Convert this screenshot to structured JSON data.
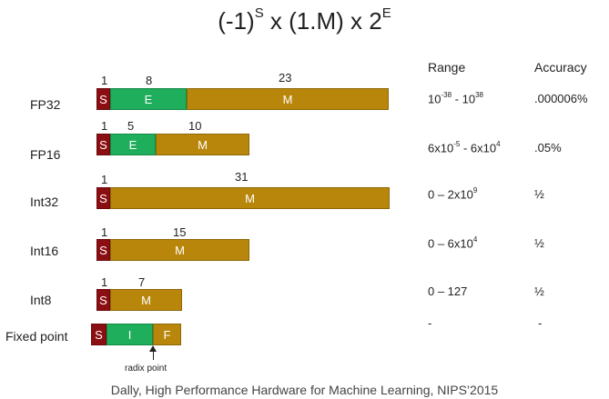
{
  "formula": {
    "base": "(-1)",
    "exp_s": "S",
    "mid": " x (1.M) x 2",
    "exp_e": "E"
  },
  "headers": {
    "range": "Range",
    "accuracy": "Accuracy"
  },
  "rows": [
    {
      "label": "FP32",
      "bits": [
        "1",
        "8",
        "23"
      ],
      "segments": [
        "S",
        "E",
        "M"
      ],
      "range": {
        "a": "10",
        "a_exp": "-38",
        "sep": " - ",
        "b": "10",
        "b_exp": "38"
      },
      "accuracy": ".000006%"
    },
    {
      "label": "FP16",
      "bits": [
        "1",
        "5",
        "10"
      ],
      "segments": [
        "S",
        "E",
        "M"
      ],
      "range": {
        "a": "6x10",
        "a_exp": "-5",
        "sep": " - ",
        "b": "6x10",
        "b_exp": "4"
      },
      "accuracy": ".05%"
    },
    {
      "label": "Int32",
      "bits": [
        "1",
        "31"
      ],
      "segments": [
        "S",
        "M"
      ],
      "range": {
        "a": "0 – 2x10",
        "a_exp": "9",
        "sep": "",
        "b": "",
        "b_exp": ""
      },
      "accuracy": "½"
    },
    {
      "label": "Int16",
      "bits": [
        "1",
        "15"
      ],
      "segments": [
        "S",
        "M"
      ],
      "range": {
        "a": "0 – 6x10",
        "a_exp": "4",
        "sep": "",
        "b": "",
        "b_exp": ""
      },
      "accuracy": "½"
    },
    {
      "label": "Int8",
      "bits": [
        "1",
        "7"
      ],
      "segments": [
        "S",
        "M"
      ],
      "range": {
        "a": "0 – 127",
        "a_exp": "",
        "sep": "",
        "b": "",
        "b_exp": ""
      },
      "accuracy": "½"
    },
    {
      "label": "Fixed point",
      "bits": [],
      "segments": [
        "S",
        "I",
        "F"
      ],
      "range": {
        "a": "-",
        "a_exp": "",
        "sep": "",
        "b": "",
        "b_exp": ""
      },
      "accuracy": "-"
    }
  ],
  "radix_label": "radix point",
  "citation": "Dally, High Performance Hardware for Machine Learning, NIPS’2015",
  "colors": {
    "sign": "#8b0e12",
    "exponent": "#1fae5b",
    "mantissa": "#b8860b"
  }
}
